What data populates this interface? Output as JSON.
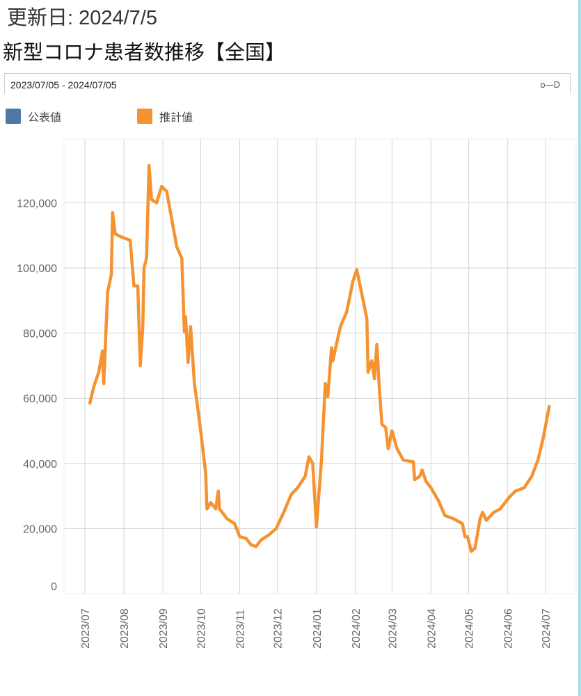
{
  "header": {
    "updated": "更新日: 2024/7/5",
    "title": "新型コロナ患者数推移【全国】"
  },
  "range_selector": {
    "value": "2023/07/05 - 2024/07/05",
    "icon": "slider-handle-icon"
  },
  "chart_data": {
    "type": "line",
    "legend": [
      {
        "name": "公表値",
        "color": "#4e79a7"
      },
      {
        "name": "推計値",
        "color": "#f59331"
      }
    ],
    "legend_position": "top-left",
    "grid": true,
    "ylim": [
      0,
      135000
    ],
    "y_ticks": [
      "0",
      "20,000",
      "40,000",
      "60,000",
      "80,000",
      "100,000",
      "120,000"
    ],
    "y_tick_values": [
      0,
      20000,
      40000,
      60000,
      80000,
      100000,
      120000
    ],
    "x_ticks": [
      "2023/07",
      "2023/08",
      "2023/09",
      "2023/10",
      "2023/11",
      "2023/12",
      "2024/01",
      "2024/02",
      "2024/03",
      "2024/04",
      "2024/05",
      "2024/06",
      "2024/07"
    ],
    "series": [
      {
        "name": "推計値",
        "color": "#f59331",
        "points": [
          [
            "2023-07-05",
            58500
          ],
          [
            "2023-07-08",
            63500
          ],
          [
            "2023-07-12",
            68000
          ],
          [
            "2023-07-15",
            74500
          ],
          [
            "2023-07-16",
            64500
          ],
          [
            "2023-07-19",
            92500
          ],
          [
            "2023-07-22",
            98000
          ],
          [
            "2023-07-23",
            117000
          ],
          [
            "2023-07-25",
            110500
          ],
          [
            "2023-07-30",
            109500
          ],
          [
            "2023-08-06",
            108500
          ],
          [
            "2023-08-09",
            94500
          ],
          [
            "2023-08-12",
            94500
          ],
          [
            "2023-08-14",
            70000
          ],
          [
            "2023-08-16",
            82000
          ],
          [
            "2023-08-17",
            100000
          ],
          [
            "2023-08-19",
            103000
          ],
          [
            "2023-08-21",
            131500
          ],
          [
            "2023-08-23",
            121000
          ],
          [
            "2023-08-27",
            120000
          ],
          [
            "2023-08-31",
            125000
          ],
          [
            "2023-09-04",
            123500
          ],
          [
            "2023-09-08",
            115000
          ],
          [
            "2023-09-12",
            106500
          ],
          [
            "2023-09-16",
            103000
          ],
          [
            "2023-09-18",
            80500
          ],
          [
            "2023-09-19",
            85000
          ],
          [
            "2023-09-21",
            71000
          ],
          [
            "2023-09-23",
            82000
          ],
          [
            "2023-09-26",
            64500
          ],
          [
            "2023-09-28",
            59000
          ],
          [
            "2023-10-01",
            50000
          ],
          [
            "2023-10-05",
            37000
          ],
          [
            "2023-10-06",
            26000
          ],
          [
            "2023-10-09",
            28000
          ],
          [
            "2023-10-13",
            26000
          ],
          [
            "2023-10-15",
            31500
          ],
          [
            "2023-10-16",
            26000
          ],
          [
            "2023-10-22",
            23000
          ],
          [
            "2023-10-28",
            21500
          ],
          [
            "2023-11-01",
            17500
          ],
          [
            "2023-11-06",
            17000
          ],
          [
            "2023-11-10",
            15000
          ],
          [
            "2023-11-14",
            14500
          ],
          [
            "2023-11-18",
            16500
          ],
          [
            "2023-11-24",
            18000
          ],
          [
            "2023-11-30",
            20000
          ],
          [
            "2023-12-06",
            25000
          ],
          [
            "2023-12-12",
            30500
          ],
          [
            "2023-12-17",
            32500
          ],
          [
            "2023-12-23",
            36000
          ],
          [
            "2023-12-26",
            42000
          ],
          [
            "2023-12-29",
            40000
          ],
          [
            "2024-01-01",
            20500
          ],
          [
            "2024-01-05",
            41000
          ],
          [
            "2024-01-08",
            64500
          ],
          [
            "2024-01-10",
            60500
          ],
          [
            "2024-01-13",
            75500
          ],
          [
            "2024-01-14",
            71500
          ],
          [
            "2024-01-20",
            82000
          ],
          [
            "2024-01-25",
            86500
          ],
          [
            "2024-01-30",
            96000
          ],
          [
            "2024-02-02",
            99500
          ],
          [
            "2024-02-05",
            94000
          ],
          [
            "2024-02-10",
            84500
          ],
          [
            "2024-02-11",
            68000
          ],
          [
            "2024-02-14",
            71500
          ],
          [
            "2024-02-16",
            66000
          ],
          [
            "2024-02-18",
            76500
          ],
          [
            "2024-02-20",
            63000
          ],
          [
            "2024-02-22",
            52000
          ],
          [
            "2024-02-25",
            51000
          ],
          [
            "2024-02-27",
            44500
          ],
          [
            "2024-03-01",
            50000
          ],
          [
            "2024-03-05",
            44500
          ],
          [
            "2024-03-10",
            41000
          ],
          [
            "2024-03-18",
            40500
          ],
          [
            "2024-03-19",
            35000
          ],
          [
            "2024-03-23",
            36000
          ],
          [
            "2024-03-25",
            38000
          ],
          [
            "2024-03-28",
            34500
          ],
          [
            "2024-04-01",
            32500
          ],
          [
            "2024-04-07",
            28500
          ],
          [
            "2024-04-12",
            24000
          ],
          [
            "2024-04-19",
            23000
          ],
          [
            "2024-04-26",
            21500
          ],
          [
            "2024-04-28",
            17500
          ],
          [
            "2024-04-30",
            17500
          ],
          [
            "2024-05-03",
            13000
          ],
          [
            "2024-05-06",
            14000
          ],
          [
            "2024-05-10",
            23000
          ],
          [
            "2024-05-12",
            25000
          ],
          [
            "2024-05-15",
            22500
          ],
          [
            "2024-05-21",
            25000
          ],
          [
            "2024-05-26",
            26000
          ],
          [
            "2024-06-02",
            29500
          ],
          [
            "2024-06-07",
            31500
          ],
          [
            "2024-06-14",
            32500
          ],
          [
            "2024-06-20",
            36000
          ],
          [
            "2024-06-25",
            41000
          ],
          [
            "2024-06-29",
            47500
          ],
          [
            "2024-07-04",
            57500
          ]
        ]
      }
    ]
  }
}
